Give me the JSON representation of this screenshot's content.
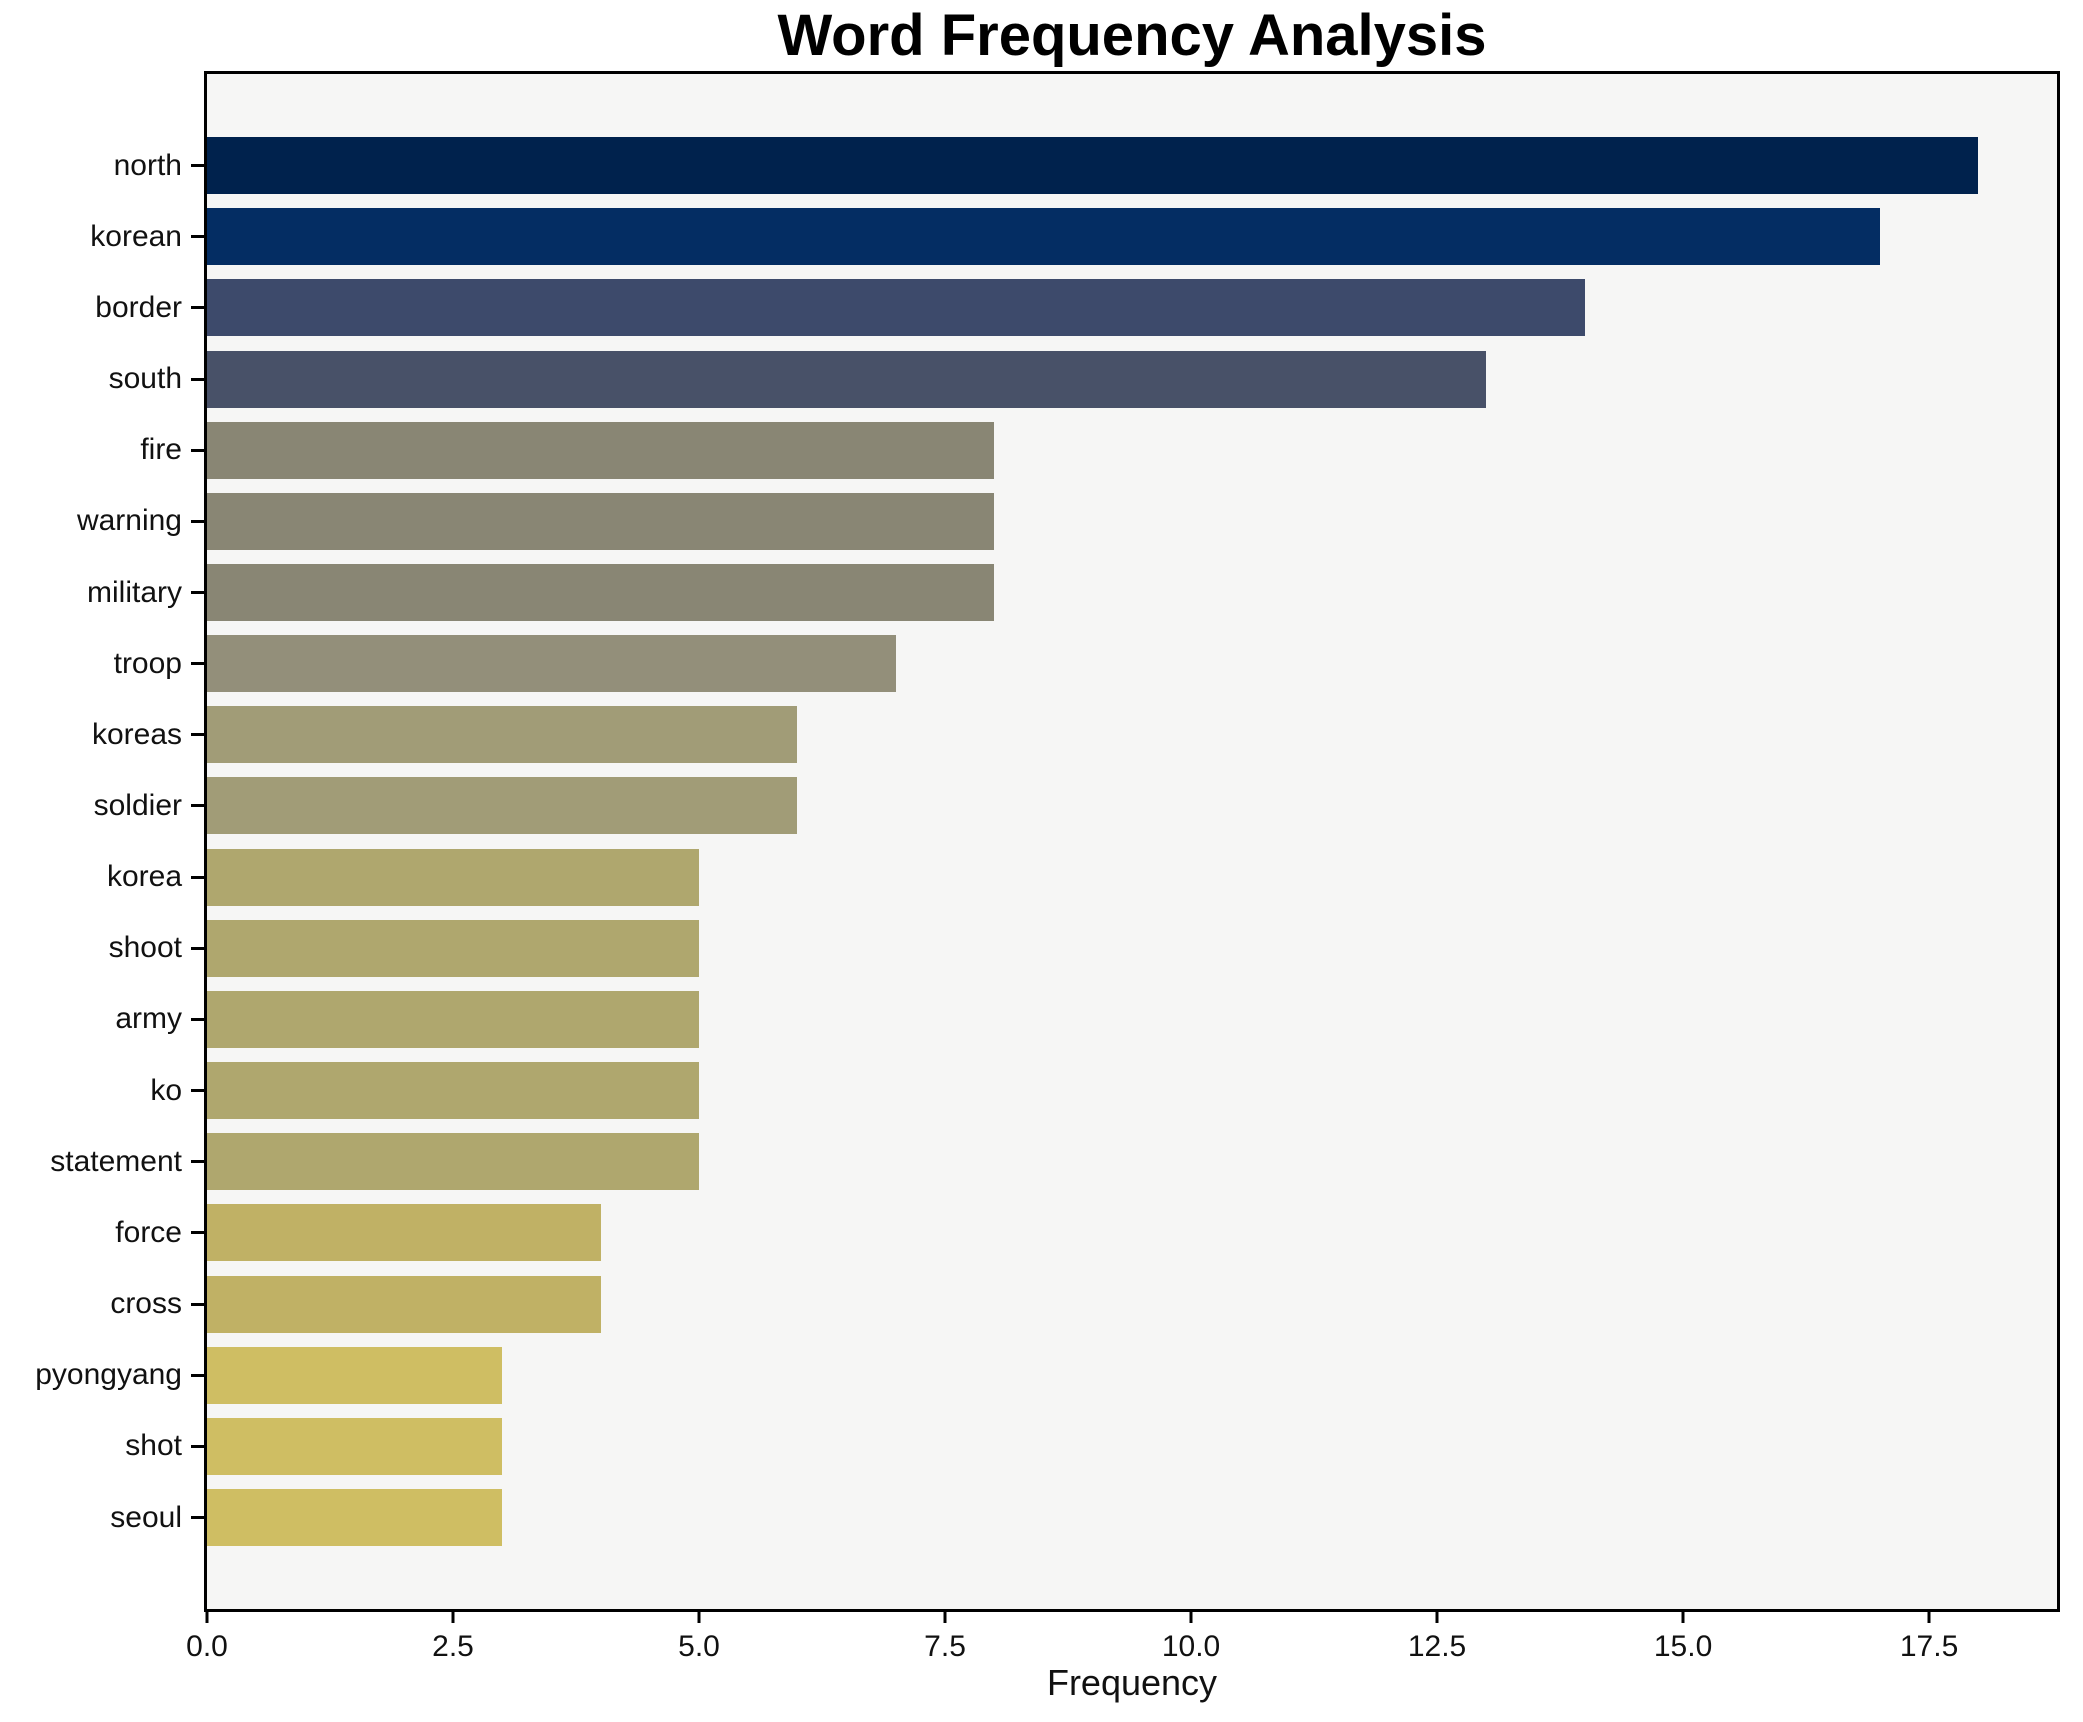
{
  "figure": {
    "background": "#ffffff"
  },
  "chart_data": {
    "type": "bar",
    "orientation": "horizontal",
    "title": "Word Frequency Analysis",
    "xlabel": "Frequency",
    "ylabel": "",
    "xlim": [
      0,
      18.8
    ],
    "grid": false,
    "legend": null,
    "plot_background": "#f6f6f5",
    "figure_background": "#ffffff",
    "axis_color": "#000000",
    "text_color": "#111111",
    "xticks": [
      0.0,
      2.5,
      5.0,
      7.5,
      10.0,
      12.5,
      15.0,
      17.5
    ],
    "xtick_labels": [
      "0.0",
      "2.5",
      "5.0",
      "7.5",
      "10.0",
      "12.5",
      "15.0",
      "17.5"
    ],
    "categories": [
      "north",
      "korean",
      "border",
      "south",
      "fire",
      "warning",
      "military",
      "troop",
      "koreas",
      "soldier",
      "korea",
      "shoot",
      "army",
      "ko",
      "statement",
      "force",
      "cross",
      "pyongyang",
      "shot",
      "seoul"
    ],
    "values": [
      18,
      17,
      14,
      13,
      8,
      8,
      8,
      7,
      6,
      6,
      5,
      5,
      5,
      5,
      5,
      4,
      4,
      3,
      3,
      3
    ],
    "bar_colors": [
      "#00224d",
      "#042d63",
      "#3d4a6b",
      "#485168",
      "#898674",
      "#898674",
      "#898674",
      "#938f7a",
      "#a19c77",
      "#a19c77",
      "#afa76e",
      "#afa76e",
      "#afa76e",
      "#afa76e",
      "#afa76e",
      "#c0b165",
      "#c0b165",
      "#cfbe63",
      "#cfbe63",
      "#cfbe63"
    ]
  }
}
